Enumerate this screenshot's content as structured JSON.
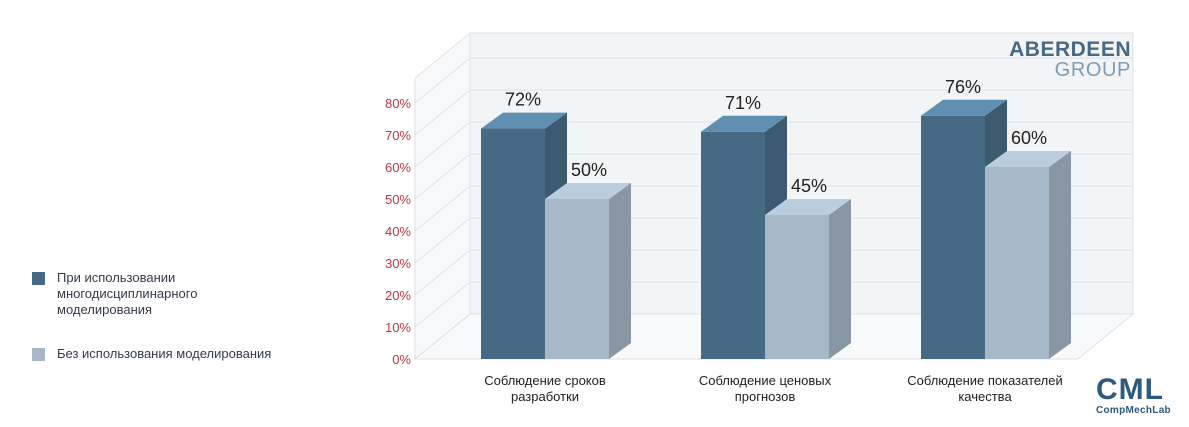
{
  "chart_data": {
    "type": "bar",
    "categories": [
      "Соблюдение сроков разработки",
      "Соблюдение ценовых прогнозов",
      "Соблюдение показателей качества"
    ],
    "category_lines": [
      [
        "Соблюдение сроков",
        "разработки"
      ],
      [
        "Соблюдение ценовых",
        "прогнозов"
      ],
      [
        "Соблюдение показателей",
        "качества"
      ]
    ],
    "series": [
      {
        "name": "При использовании многодисциплинарного моделирования",
        "values": [
          72,
          71,
          76
        ],
        "labels": [
          "72%",
          "71%",
          "76%"
        ],
        "color": "#476a84"
      },
      {
        "name": "Без использования моделирования",
        "values": [
          50,
          45,
          60
        ],
        "labels": [
          "50%",
          "45%",
          "60%"
        ],
        "color": "#a6b8c7"
      }
    ],
    "yticks": [
      "0%",
      "10%",
      "20%",
      "30%",
      "40%",
      "50%",
      "60%",
      "70%",
      "80%"
    ],
    "ylim": [
      0,
      80
    ],
    "tick_color": "#c2334a",
    "legend_position": "left",
    "grid": true
  },
  "legend": {
    "items": [
      {
        "label_lines": [
          "При использовании",
          "многодисциплинарного",
          "моделирования"
        ],
        "color": "#476a84"
      },
      {
        "label_lines": [
          "Без использования моделирования"
        ],
        "color": "#a6b8c7"
      }
    ]
  },
  "brand": {
    "main": "ABERDEEN",
    "sub": "GROUP"
  },
  "logo": {
    "main": "CML",
    "sub": "CompMechLab"
  }
}
